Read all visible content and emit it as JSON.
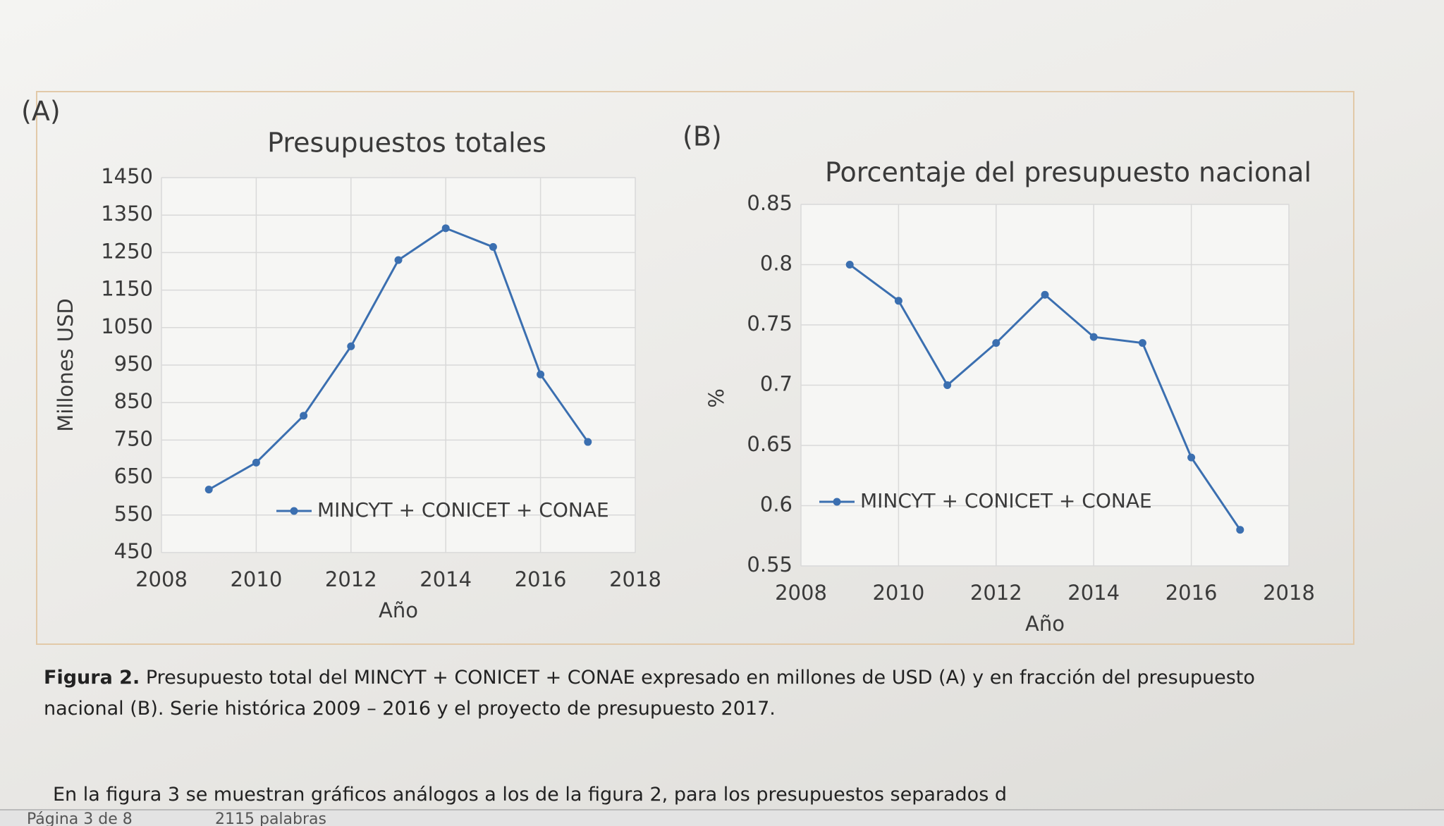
{
  "chart_data": [
    {
      "type": "line",
      "panel": "(A)",
      "title": "Presupuestos totales",
      "x_label": "Año",
      "y_label": "Millones USD",
      "x": [
        2009,
        2010,
        2011,
        2012,
        2013,
        2014,
        2015,
        2016,
        2017
      ],
      "series": [
        {
          "name": "MINCYT + CONICET + CONAE",
          "color": "#3b6fb0",
          "values": [
            618,
            690,
            815,
            1000,
            1230,
            1315,
            1265,
            925,
            745
          ]
        }
      ],
      "xlim": [
        2008,
        2018
      ],
      "xticks": [
        2008,
        2010,
        2012,
        2014,
        2016,
        2018
      ],
      "ylim": [
        450,
        1450
      ],
      "yticks": [
        450,
        550,
        650,
        750,
        850,
        950,
        1050,
        1150,
        1250,
        1350,
        1450
      ],
      "grid": true
    },
    {
      "type": "line",
      "panel": "(B)",
      "title": "Porcentaje del presupuesto nacional",
      "x_label": "Año",
      "y_label": "%",
      "x": [
        2009,
        2010,
        2011,
        2012,
        2013,
        2014,
        2015,
        2016,
        2017
      ],
      "series": [
        {
          "name": "MINCYT + CONICET + CONAE",
          "color": "#3b6fb0",
          "values": [
            0.8,
            0.77,
            0.7,
            0.735,
            0.775,
            0.74,
            0.735,
            0.64,
            0.58
          ]
        }
      ],
      "xlim": [
        2008,
        2018
      ],
      "xticks": [
        2008,
        2010,
        2012,
        2014,
        2016,
        2018
      ],
      "ylim": [
        0.55,
        0.85
      ],
      "yticks": [
        0.55,
        0.6,
        0.65,
        0.7,
        0.75,
        0.8,
        0.85
      ],
      "grid": true
    }
  ],
  "caption": {
    "label": "Figura 2.",
    "text": "Presupuesto total del MINCYT + CONICET + CONAE expresado en millones de USD (A) y en fracción del presupuesto nacional (B). Serie histórica 2009 – 2016 y el proyecto de presupuesto 2017."
  },
  "body_text": "En la figura 3 se muestran gráficos análogos a los de la figura 2, para los presupuestos separados d",
  "status": {
    "page": "Página 3 de 8",
    "words": "2115 palabras"
  }
}
